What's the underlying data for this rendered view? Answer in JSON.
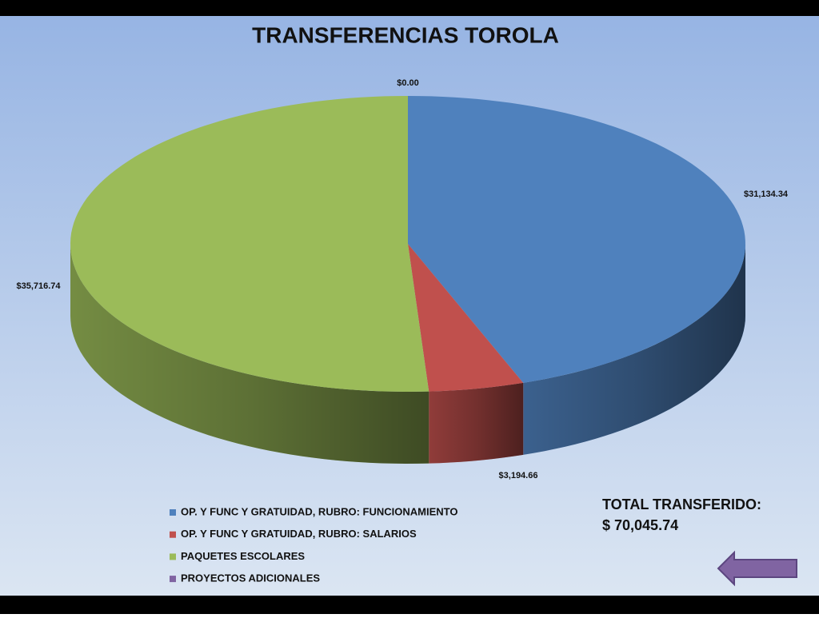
{
  "chart_data": {
    "type": "pie",
    "title": "TRANSFERENCIAS TOROLA",
    "categories": [
      "OP. Y FUNC Y GRATUIDAD,  RUBRO: FUNCIONAMIENTO",
      "OP. Y FUNC Y GRATUIDAD,  RUBRO: SALARIOS",
      "PAQUETES ESCOLARES",
      "PROYECTOS ADICIONALES"
    ],
    "values": [
      31134.34,
      3194.66,
      35716.74,
      0
    ],
    "value_labels": [
      "$31,134.34",
      "$3,194.66",
      "$35,716.74",
      "$0.00"
    ],
    "colors": [
      "#4f81bd",
      "#c0504d",
      "#9bbb59",
      "#8064a2"
    ],
    "annotations": [
      "TOTAL TRANSFERIDO:",
      "$ 70,045.74"
    ]
  }
}
